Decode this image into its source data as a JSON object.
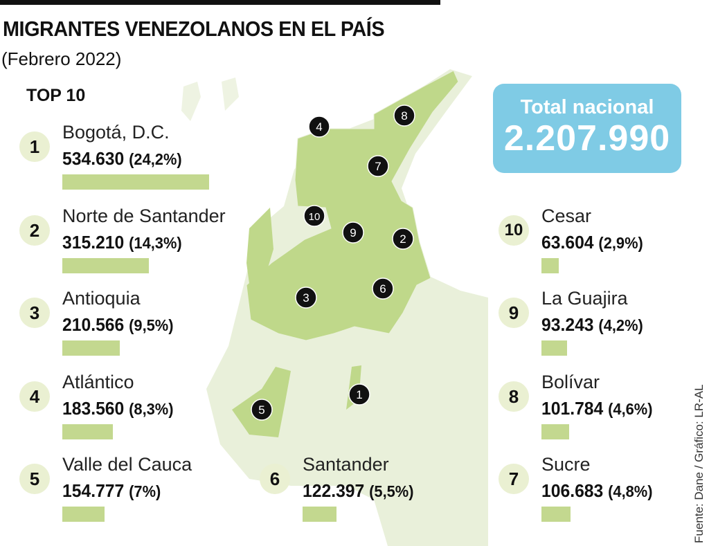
{
  "header": {
    "title": "MIGRANTES VENEZOLANOS EN EL PAÍS",
    "subtitle": "(Febrero 2022)",
    "section_label": "TOP 10"
  },
  "total": {
    "label": "Total nacional",
    "value": "2.207.990"
  },
  "source": "Fuente: Dane / Gráfico: LR-AL",
  "colors": {
    "bar": "#c3d88f",
    "highlight_region": "#bfd88a",
    "map_base": "#e9f0da",
    "badge": "#eaf0d2",
    "total_box": "#7fcbe5",
    "marker": "#111111"
  },
  "chart_data": {
    "type": "bar",
    "title": "MIGRANTES VENEZOLANOS EN EL PAÍS",
    "subtitle": "(Febrero 2022)",
    "categories": [
      "Bogotá, D.C.",
      "Norte de Santander",
      "Antioquia",
      "Atlántico",
      "Valle del Cauca",
      "Santander",
      "Sucre",
      "Bolívar",
      "La Guajira",
      "Cesar"
    ],
    "values": [
      534630,
      315210,
      210566,
      183560,
      154777,
      122397,
      106683,
      101784,
      93243,
      63604
    ],
    "items": [
      {
        "rank": "1",
        "name": "Bogotá, D.C.",
        "value": 534630,
        "value_label": "534.630",
        "pct_label": "(24,2%)"
      },
      {
        "rank": "2",
        "name": "Norte de Santander",
        "value": 315210,
        "value_label": "315.210",
        "pct_label": "(14,3%)"
      },
      {
        "rank": "3",
        "name": "Antioquia",
        "value": 210566,
        "value_label": "210.566",
        "pct_label": "(9,5%)"
      },
      {
        "rank": "4",
        "name": "Atlántico",
        "value": 183560,
        "value_label": "183.560",
        "pct_label": "(8,3%)"
      },
      {
        "rank": "5",
        "name": "Valle del Cauca",
        "value": 154777,
        "value_label": "154.777",
        "pct_label": "(7%)"
      },
      {
        "rank": "6",
        "name": "Santander",
        "value": 122397,
        "value_label": "122.397",
        "pct_label": "(5,5%)"
      },
      {
        "rank": "7",
        "name": "Sucre",
        "value": 106683,
        "value_label": "106.683",
        "pct_label": "(4,8%)"
      },
      {
        "rank": "8",
        "name": "Bolívar",
        "value": 101784,
        "value_label": "101.784",
        "pct_label": "(4,6%)"
      },
      {
        "rank": "9",
        "name": "La Guajira",
        "value": 93243,
        "value_label": "93.243",
        "pct_label": "(4,2%)"
      },
      {
        "rank": "10",
        "name": "Cesar",
        "value": 63604,
        "value_label": "63.604",
        "pct_label": "(2,9%)"
      }
    ]
  }
}
